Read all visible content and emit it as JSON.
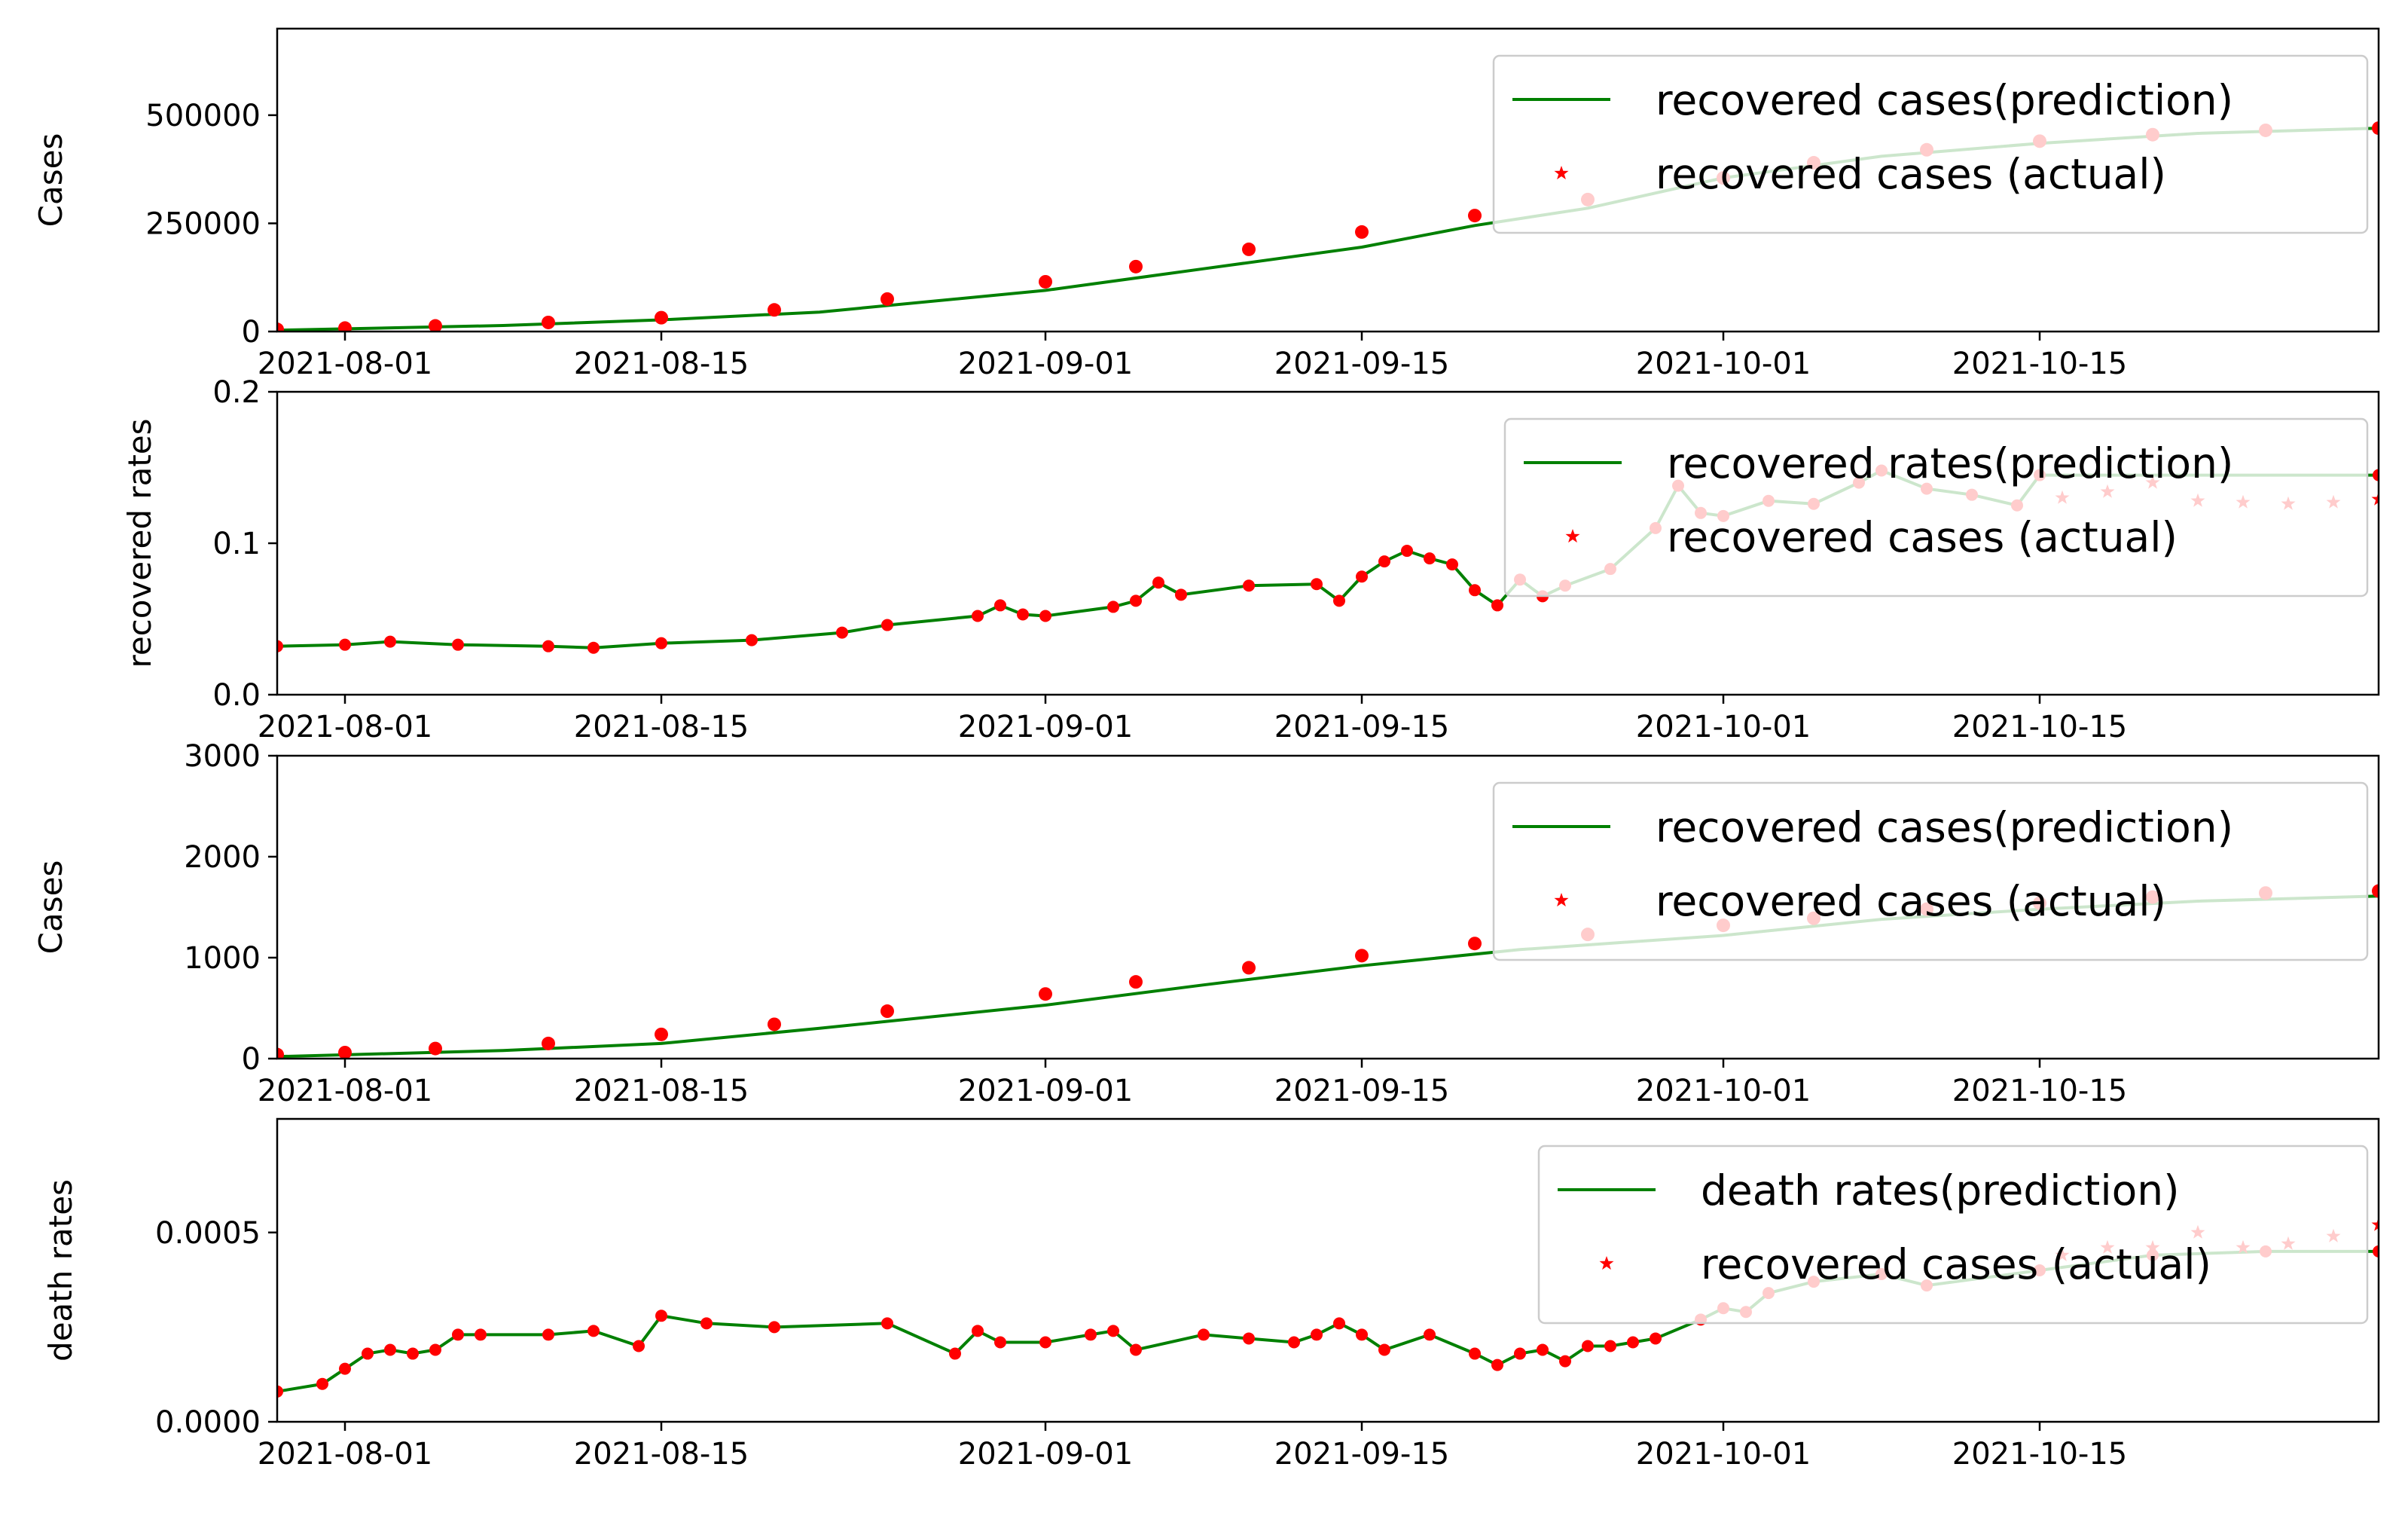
{
  "colors": {
    "prediction_line": "#008000",
    "actual_marker": "#ff0000",
    "axes": "#000000",
    "legend_edge": "#cccccc",
    "background": "#ffffff"
  },
  "chart_data": [
    {
      "type": "line",
      "ylabel": "Cases",
      "ylim": [
        0,
        700000
      ],
      "yticks": [
        {
          "value": 0,
          "label": "0"
        },
        {
          "value": 250000,
          "label": "250000"
        },
        {
          "value": 500000,
          "label": "500000"
        }
      ],
      "xlim": [
        "2021-07-29",
        "2021-10-30"
      ],
      "xticks": [
        "2021-08-01",
        "2021-08-15",
        "2021-09-01",
        "2021-09-15",
        "2021-10-01",
        "2021-10-15"
      ],
      "legend": "upper right",
      "series": [
        {
          "name": "recovered cases(prediction)",
          "kind": "line",
          "x": [
            "2021-07-29",
            "2021-08-08",
            "2021-08-15",
            "2021-08-22",
            "2021-09-01",
            "2021-09-08",
            "2021-09-15",
            "2021-09-20",
            "2021-09-25",
            "2021-10-01",
            "2021-10-08",
            "2021-10-15",
            "2021-10-22",
            "2021-10-30"
          ],
          "values": [
            3000,
            14000,
            27000,
            45000,
            95000,
            145000,
            195000,
            245000,
            285000,
            355000,
            405000,
            435000,
            458000,
            470000
          ]
        },
        {
          "name": "recovered cases (actual)",
          "kind": "marker",
          "x": [
            "2021-07-29",
            "2021-08-01",
            "2021-08-05",
            "2021-08-10",
            "2021-08-15",
            "2021-08-20",
            "2021-08-25",
            "2021-09-01",
            "2021-09-05",
            "2021-09-10",
            "2021-09-15",
            "2021-09-20",
            "2021-09-25",
            "2021-10-01",
            "2021-10-05",
            "2021-10-10",
            "2021-10-15",
            "2021-10-20",
            "2021-10-25",
            "2021-10-30"
          ],
          "values": [
            5000,
            8000,
            13000,
            21000,
            32000,
            50000,
            75000,
            115000,
            150000,
            190000,
            230000,
            268000,
            305000,
            355000,
            390000,
            420000,
            440000,
            455000,
            465000,
            470000
          ]
        }
      ]
    },
    {
      "type": "line",
      "ylabel": "recovered rates",
      "ylim": [
        0,
        0.2
      ],
      "yticks": [
        {
          "value": 0,
          "label": "0.0"
        },
        {
          "value": 0.1,
          "label": "0.1"
        },
        {
          "value": 0.2,
          "label": "0.2"
        }
      ],
      "xlim": [
        "2021-07-29",
        "2021-10-30"
      ],
      "xticks": [
        "2021-08-01",
        "2021-08-15",
        "2021-09-01",
        "2021-09-15",
        "2021-10-01",
        "2021-10-15"
      ],
      "legend": "upper right",
      "series": [
        {
          "name": "recovered rates(prediction)",
          "kind": "line+marker",
          "x": [
            "2021-07-29",
            "2021-08-01",
            "2021-08-03",
            "2021-08-06",
            "2021-08-10",
            "2021-08-12",
            "2021-08-15",
            "2021-08-19",
            "2021-08-23",
            "2021-08-25",
            "2021-08-29",
            "2021-08-30",
            "2021-08-31",
            "2021-09-01",
            "2021-09-04",
            "2021-09-05",
            "2021-09-06",
            "2021-09-07",
            "2021-09-10",
            "2021-09-13",
            "2021-09-14",
            "2021-09-15",
            "2021-09-16",
            "2021-09-17",
            "2021-09-18",
            "2021-09-19",
            "2021-09-20",
            "2021-09-21",
            "2021-09-22",
            "2021-09-23",
            "2021-09-24",
            "2021-09-26",
            "2021-09-28",
            "2021-09-29",
            "2021-09-30",
            "2021-10-01",
            "2021-10-03",
            "2021-10-05",
            "2021-10-07",
            "2021-10-08",
            "2021-10-10",
            "2021-10-12",
            "2021-10-14",
            "2021-10-15",
            "2021-10-30"
          ],
          "values": [
            0.032,
            0.033,
            0.035,
            0.033,
            0.032,
            0.031,
            0.034,
            0.036,
            0.041,
            0.046,
            0.052,
            0.059,
            0.053,
            0.052,
            0.058,
            0.062,
            0.074,
            0.066,
            0.072,
            0.073,
            0.062,
            0.078,
            0.088,
            0.095,
            0.09,
            0.086,
            0.069,
            0.059,
            0.076,
            0.065,
            0.072,
            0.083,
            0.11,
            0.138,
            0.12,
            0.118,
            0.128,
            0.126,
            0.14,
            0.148,
            0.136,
            0.132,
            0.125,
            0.145,
            0.145
          ]
        },
        {
          "name": "recovered cases (actual)",
          "kind": "marker",
          "x": [
            "2021-10-16",
            "2021-10-18",
            "2021-10-20",
            "2021-10-22",
            "2021-10-24",
            "2021-10-26",
            "2021-10-28",
            "2021-10-30"
          ],
          "values": [
            0.13,
            0.134,
            0.14,
            0.128,
            0.127,
            0.126,
            0.127,
            0.129
          ]
        }
      ]
    },
    {
      "type": "line",
      "ylabel": "Cases",
      "ylim": [
        0,
        3000
      ],
      "yticks": [
        {
          "value": 0,
          "label": "0"
        },
        {
          "value": 1000,
          "label": "1000"
        },
        {
          "value": 2000,
          "label": "2000"
        },
        {
          "value": 3000,
          "label": "3000"
        }
      ],
      "xlim": [
        "2021-07-29",
        "2021-10-30"
      ],
      "xticks": [
        "2021-08-01",
        "2021-08-15",
        "2021-09-01",
        "2021-09-15",
        "2021-10-01",
        "2021-10-15"
      ],
      "legend": "upper right",
      "series": [
        {
          "name": "recovered cases(prediction)",
          "kind": "line",
          "x": [
            "2021-07-29",
            "2021-08-08",
            "2021-08-15",
            "2021-08-22",
            "2021-09-01",
            "2021-09-08",
            "2021-09-15",
            "2021-09-22",
            "2021-10-01",
            "2021-10-08",
            "2021-10-15",
            "2021-10-22",
            "2021-10-30"
          ],
          "values": [
            20,
            80,
            150,
            300,
            530,
            730,
            920,
            1080,
            1220,
            1380,
            1480,
            1560,
            1610
          ]
        },
        {
          "name": "recovered cases (actual)",
          "kind": "marker",
          "x": [
            "2021-07-29",
            "2021-08-01",
            "2021-08-05",
            "2021-08-10",
            "2021-08-15",
            "2021-08-20",
            "2021-08-25",
            "2021-09-01",
            "2021-09-05",
            "2021-09-10",
            "2021-09-15",
            "2021-09-20",
            "2021-09-25",
            "2021-10-01",
            "2021-10-05",
            "2021-10-10",
            "2021-10-15",
            "2021-10-20",
            "2021-10-25",
            "2021-10-30"
          ],
          "values": [
            40,
            60,
            100,
            150,
            240,
            340,
            470,
            640,
            760,
            900,
            1020,
            1140,
            1230,
            1320,
            1390,
            1480,
            1540,
            1600,
            1640,
            1660
          ]
        }
      ]
    },
    {
      "type": "line",
      "ylabel": "death rates",
      "ylim": [
        0,
        0.0008
      ],
      "yticks": [
        {
          "value": 0,
          "label": "0.0000"
        },
        {
          "value": 0.0005,
          "label": "0.0005"
        }
      ],
      "xlim": [
        "2021-07-29",
        "2021-10-30"
      ],
      "xticks": [
        "2021-08-01",
        "2021-08-15",
        "2021-09-01",
        "2021-09-15",
        "2021-10-01",
        "2021-10-15"
      ],
      "legend": "upper right",
      "series": [
        {
          "name": "death rates(prediction)",
          "kind": "line+marker",
          "x": [
            "2021-07-29",
            "2021-07-31",
            "2021-08-01",
            "2021-08-02",
            "2021-08-03",
            "2021-08-04",
            "2021-08-05",
            "2021-08-06",
            "2021-08-07",
            "2021-08-10",
            "2021-08-12",
            "2021-08-14",
            "2021-08-15",
            "2021-08-17",
            "2021-08-20",
            "2021-08-25",
            "2021-08-28",
            "2021-08-29",
            "2021-08-30",
            "2021-09-01",
            "2021-09-03",
            "2021-09-04",
            "2021-09-05",
            "2021-09-08",
            "2021-09-10",
            "2021-09-12",
            "2021-09-13",
            "2021-09-14",
            "2021-09-15",
            "2021-09-16",
            "2021-09-18",
            "2021-09-20",
            "2021-09-21",
            "2021-09-22",
            "2021-09-23",
            "2021-09-24",
            "2021-09-25",
            "2021-09-26",
            "2021-09-27",
            "2021-09-28",
            "2021-09-30",
            "2021-10-01",
            "2021-10-02",
            "2021-10-03",
            "2021-10-05",
            "2021-10-08",
            "2021-10-10",
            "2021-10-15",
            "2021-10-20",
            "2021-10-25",
            "2021-10-30"
          ],
          "values": [
            8e-05,
            0.0001,
            0.00014,
            0.00018,
            0.00019,
            0.00018,
            0.00019,
            0.00023,
            0.00023,
            0.00023,
            0.00024,
            0.0002,
            0.00028,
            0.00026,
            0.00025,
            0.00026,
            0.00018,
            0.00024,
            0.00021,
            0.00021,
            0.00023,
            0.00024,
            0.00019,
            0.00023,
            0.00022,
            0.00021,
            0.00023,
            0.00026,
            0.00023,
            0.00019,
            0.00023,
            0.00018,
            0.00015,
            0.00018,
            0.00019,
            0.00016,
            0.0002,
            0.0002,
            0.00021,
            0.00022,
            0.00027,
            0.0003,
            0.00029,
            0.00034,
            0.00037,
            0.00039,
            0.00036,
            0.0004,
            0.00044,
            0.00045,
            0.00045
          ]
        },
        {
          "name": "recovered cases (actual)",
          "kind": "marker",
          "x": [
            "2021-10-16",
            "2021-10-18",
            "2021-10-20",
            "2021-10-22",
            "2021-10-24",
            "2021-10-26",
            "2021-10-28",
            "2021-10-30"
          ],
          "values": [
            0.00044,
            0.00046,
            0.00046,
            0.0005,
            0.00046,
            0.00047,
            0.00049,
            0.00052
          ]
        }
      ]
    }
  ]
}
